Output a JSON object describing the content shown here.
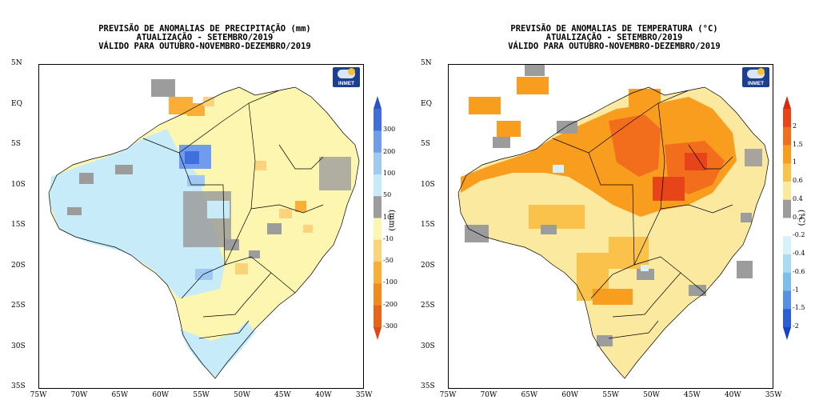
{
  "left": {
    "title_lines": [
      "PREVISÃO DE ANOMALIAS DE PRECIPITAÇÃO (mm)",
      "ATUALIZAÇÃO - SETEMBRO/2019",
      "VÁLIDO PARA OUTUBRO-NOVEMBRO-DEZEMBRO/2019"
    ],
    "logo_text": "INMET",
    "unit": "(mm)",
    "colorbar": {
      "ends": [
        "#2c52c0",
        "#e04818"
      ],
      "colors": [
        "#3f6fdc",
        "#6f9cec",
        "#9fc8f2",
        "#c7ebf8",
        "#9c9c9c",
        "#fdf6b0",
        "#fcd27a",
        "#fbae36",
        "#f48a1e",
        "#e86418"
      ],
      "labels": [
        "300",
        "200",
        "100",
        "50",
        "10",
        "-10",
        "-50",
        "-100",
        "-200",
        "-300"
      ]
    }
  },
  "right": {
    "title_lines": [
      "PREVISÃO DE ANOMALIAS DE TEMPERATURA (°C)",
      "ATUALIZAÇÃO - SETEMBRO/2019",
      "VÁLIDO PARA OUTUBRO-NOVEMBRO-DEZEMBRO/2019"
    ],
    "logo_text": "INMET",
    "unit": "(°C)",
    "colorbar": {
      "ends": [
        "#d42c10",
        "#1c40c8"
      ],
      "colors": [
        "#e8441a",
        "#f36e1c",
        "#f89d1e",
        "#fac24a",
        "#fbe9a0",
        "#9c9c9c",
        "#ffffff",
        "#d7f1fa",
        "#a8dcf2",
        "#7cbdee",
        "#5390e6",
        "#2c5fd6"
      ],
      "labels": [
        "2",
        "1.5",
        "1",
        "0.6",
        "0.4",
        "0.2",
        "-0.2",
        "-0.4",
        "-0.6",
        "-1",
        "-1.5",
        "-2"
      ]
    }
  },
  "axes": {
    "lat_labels": [
      "5N",
      "EQ",
      "5S",
      "10S",
      "15S",
      "20S",
      "25S",
      "30S",
      "35S"
    ],
    "lon_labels": [
      "75W",
      "70W",
      "65W",
      "60W",
      "55W",
      "50W",
      "45W",
      "40W",
      "35W"
    ],
    "lat_range": [
      5,
      -35
    ],
    "lon_range": [
      -75,
      -35
    ]
  }
}
